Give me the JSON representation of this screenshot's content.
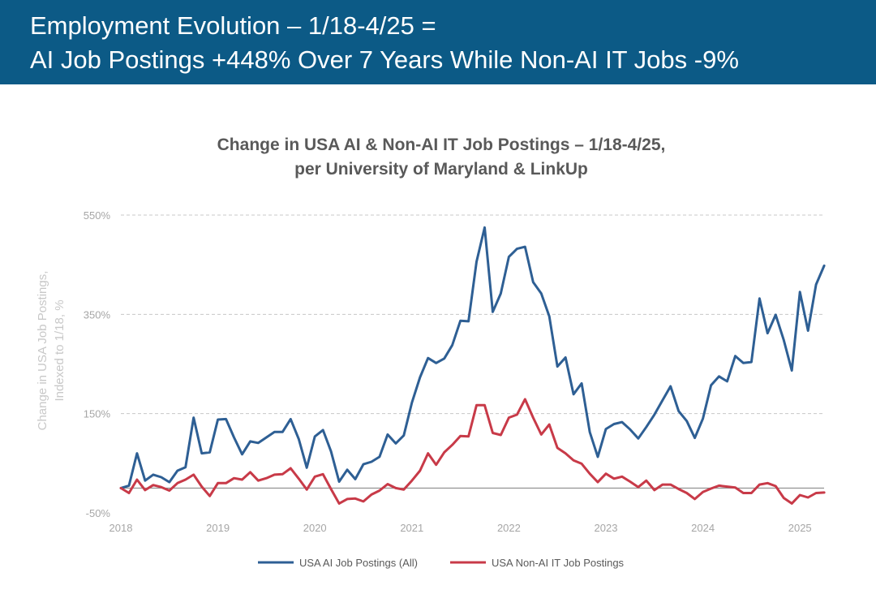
{
  "header": {
    "title_line1": "Employment Evolution – 1/18-4/25 =",
    "title_line2": "AI Job Postings +448% Over 7 Years While Non-AI IT Jobs -9%"
  },
  "colors": {
    "header_bg": "#0c5a86",
    "ai_series": "#2e5f94",
    "non_ai_series": "#c83a48",
    "grid": "#c8c8c8",
    "zero_line": "#8c8c8c"
  },
  "chart_data": {
    "type": "line",
    "title": "Change in USA AI & Non-AI IT Job Postings – 1/18-4/25,",
    "subtitle": "per University of Maryland & LinkUp",
    "ylabel_line1": "Change in USA Job Postings,",
    "ylabel_line2": "Indexed to 1/18, %",
    "ylim": [
      -50,
      550
    ],
    "y_ticks": [
      550,
      350,
      150,
      -50
    ],
    "y_tick_labels": [
      "550%",
      "350%",
      "150%",
      "-50%"
    ],
    "x_ticks": [
      2018,
      2019,
      2020,
      2021,
      2022,
      2023,
      2024,
      2025
    ],
    "x_tick_labels": [
      "2018",
      "2019",
      "2020",
      "2021",
      "2022",
      "2023",
      "2024",
      "2025"
    ],
    "grid": "horizontal dashed",
    "legend_position": "bottom",
    "x_start": "2018-01",
    "series": [
      {
        "name": "USA AI Job Postings (All)",
        "values": [
          0,
          5,
          70,
          15,
          27,
          22,
          12,
          35,
          42,
          142,
          70,
          72,
          138,
          139,
          102,
          68,
          94,
          91,
          102,
          113,
          113,
          139,
          99,
          41,
          104,
          117,
          74,
          13,
          37,
          18,
          48,
          53,
          63,
          108,
          90,
          106,
          172,
          223,
          262,
          252,
          261,
          288,
          337,
          336,
          456,
          525,
          355,
          392,
          466,
          482,
          486,
          415,
          392,
          346,
          245,
          263,
          189,
          211,
          113,
          63,
          119,
          129,
          133,
          118,
          100,
          123,
          148,
          177,
          205,
          155,
          135,
          101,
          140,
          207,
          225,
          215,
          266,
          252,
          254,
          382,
          312,
          349,
          298,
          237,
          395,
          317,
          410,
          448
        ]
      },
      {
        "name": "USA Non-AI IT Job Postings",
        "values": [
          0,
          -10,
          17,
          -4,
          6,
          2,
          -5,
          10,
          17,
          27,
          3,
          -16,
          10,
          10,
          20,
          17,
          32,
          15,
          20,
          27,
          28,
          40,
          19,
          -3,
          23,
          28,
          -2,
          -31,
          -22,
          -21,
          -27,
          -13,
          -5,
          8,
          0,
          -3,
          15,
          35,
          70,
          47,
          72,
          87,
          105,
          104,
          167,
          167,
          111,
          107,
          142,
          148,
          179,
          142,
          108,
          128,
          81,
          70,
          56,
          49,
          29,
          12,
          29,
          19,
          23,
          13,
          2,
          15,
          -4,
          7,
          7,
          -2,
          -10,
          -22,
          -8,
          -1,
          5,
          3,
          1,
          -10,
          -10,
          7,
          10,
          4,
          -20,
          -31,
          -14,
          -19,
          -10,
          -9
        ]
      }
    ]
  }
}
